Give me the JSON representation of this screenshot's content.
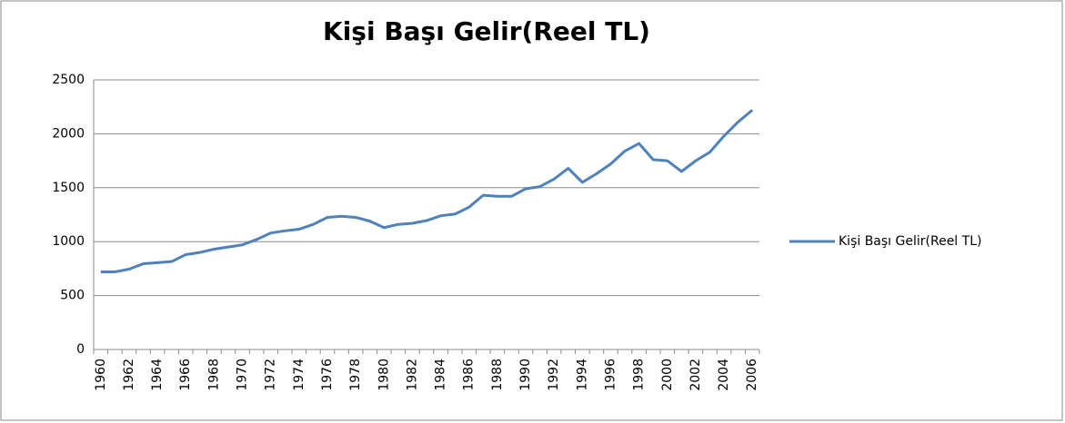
{
  "chart_data": {
    "type": "line",
    "title": "Kişi Başı Gelir(Reel TL)",
    "categories": [
      "1960",
      null,
      "1962",
      null,
      "1964",
      null,
      "1966",
      null,
      "1968",
      null,
      "1970",
      null,
      "1972",
      null,
      "1974",
      null,
      "1976",
      null,
      "1978",
      null,
      "1980",
      null,
      "1982",
      null,
      "1984",
      null,
      "1986",
      null,
      "1988",
      null,
      "1990",
      null,
      "1992",
      null,
      "1994",
      null,
      "1996",
      null,
      "1998",
      null,
      "2000",
      null,
      "2002",
      null,
      "2004",
      null,
      "2006"
    ],
    "series": [
      {
        "name": "Kişi Başı Gelir(Reel TL)",
        "color": "#4f81bd",
        "values": [
          720,
          720,
          745,
          795,
          805,
          815,
          880,
          900,
          930,
          950,
          970,
          1020,
          1080,
          1100,
          1115,
          1160,
          1225,
          1235,
          1225,
          1190,
          1130,
          1160,
          1170,
          1195,
          1240,
          1255,
          1320,
          1430,
          1420,
          1420,
          1490,
          1510,
          1580,
          1680,
          1550,
          1630,
          1720,
          1840,
          1910,
          1760,
          1750,
          1650,
          1750,
          1830,
          1980,
          2110,
          2220
        ]
      }
    ],
    "ylim": [
      0,
      2500
    ],
    "yticks": [
      0,
      500,
      1000,
      1500,
      2000,
      2500
    ],
    "grid": true,
    "legend": "right"
  }
}
